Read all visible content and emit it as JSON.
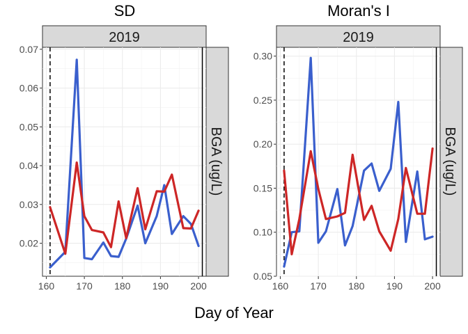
{
  "xlabel": "Day of Year",
  "chart_data": [
    {
      "type": "line",
      "title": "SD",
      "facet_label": "2019",
      "strip_right_label": "BGA (ug/L)",
      "xlim": [
        159,
        202
      ],
      "ylim": [
        0.0115,
        0.0705
      ],
      "x_ticks": [
        160,
        170,
        180,
        190,
        200
      ],
      "y_ticks": [
        0.02,
        0.03,
        0.04,
        0.05,
        0.06,
        0.07
      ],
      "y_tick_labels": [
        "0.02",
        "0.03",
        "0.04",
        "0.05",
        "0.06",
        "0.07"
      ],
      "vlines": [
        {
          "x": 161,
          "style": "dashed"
        },
        {
          "x": 201,
          "style": "solid"
        }
      ],
      "series": [
        {
          "name": "blue",
          "color": "#3a5fcd",
          "x": [
            161,
            165,
            168,
            170,
            172,
            175,
            177,
            179,
            181,
            184,
            186,
            189,
            191,
            193,
            196,
            198,
            200
          ],
          "y": [
            0.0138,
            0.0178,
            0.0673,
            0.0162,
            0.0159,
            0.0202,
            0.0167,
            0.0165,
            0.0212,
            0.0297,
            0.02,
            0.027,
            0.035,
            0.0224,
            0.027,
            0.025,
            0.0193
          ]
        },
        {
          "name": "red",
          "color": "#cd2626",
          "x": [
            161,
            165,
            168,
            170,
            172,
            175,
            177,
            179,
            181,
            184,
            186,
            189,
            191,
            193,
            196,
            198,
            200
          ],
          "y": [
            0.0293,
            0.0173,
            0.0408,
            0.027,
            0.0234,
            0.0228,
            0.019,
            0.0308,
            0.0213,
            0.0342,
            0.0236,
            0.0334,
            0.0333,
            0.0377,
            0.0239,
            0.0238,
            0.0284
          ]
        }
      ]
    },
    {
      "type": "line",
      "title": "Moran's I",
      "facet_label": "2019",
      "strip_right_label": "BGA (ug/L)",
      "xlim": [
        159,
        202
      ],
      "ylim": [
        0.05,
        0.31
      ],
      "x_ticks": [
        160,
        170,
        180,
        190,
        200
      ],
      "y_ticks": [
        0.05,
        0.1,
        0.15,
        0.2,
        0.25,
        0.3
      ],
      "y_tick_labels": [
        "0.05",
        "0.10",
        "0.15",
        "0.20",
        "0.25",
        "0.30"
      ],
      "vlines": [
        {
          "x": 161,
          "style": "dashed"
        },
        {
          "x": 201,
          "style": "solid"
        }
      ],
      "series": [
        {
          "name": "blue",
          "color": "#3a5fcd",
          "x": [
            161,
            163,
            165,
            168,
            170,
            172,
            175,
            177,
            179,
            182,
            184,
            186,
            189,
            191,
            193,
            196,
            198,
            200
          ],
          "y": [
            0.061,
            0.1,
            0.101,
            0.298,
            0.088,
            0.101,
            0.149,
            0.085,
            0.107,
            0.17,
            0.178,
            0.147,
            0.172,
            0.248,
            0.089,
            0.169,
            0.092,
            0.095
          ]
        },
        {
          "name": "red",
          "color": "#cd2626",
          "x": [
            161,
            163,
            165,
            168,
            170,
            172,
            175,
            177,
            179,
            182,
            184,
            186,
            189,
            191,
            193,
            196,
            198,
            200
          ],
          "y": [
            0.17,
            0.075,
            0.115,
            0.192,
            0.149,
            0.115,
            0.118,
            0.122,
            0.188,
            0.114,
            0.13,
            0.101,
            0.079,
            0.115,
            0.173,
            0.121,
            0.121,
            0.195
          ]
        }
      ]
    }
  ]
}
